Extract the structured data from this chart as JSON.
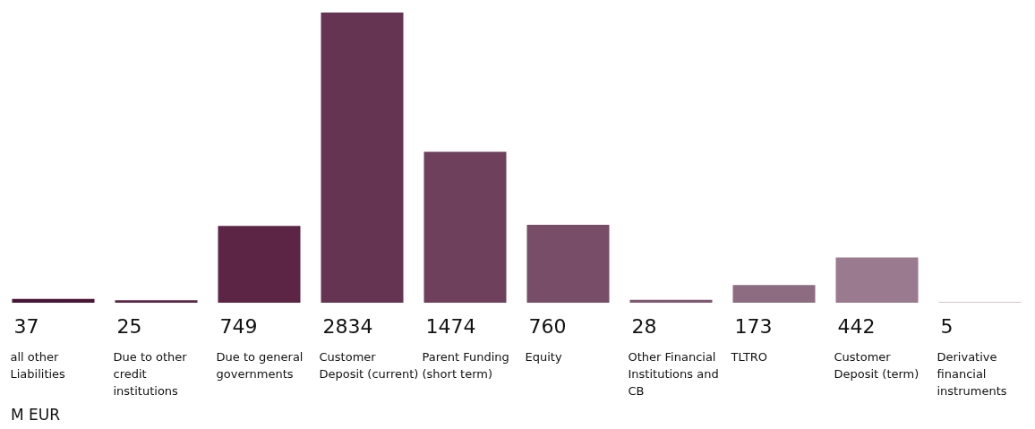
{
  "chart_data": {
    "type": "bar",
    "categories": [
      "all other Liabilities",
      "Due to other credit institutions",
      "Due to general governments",
      "Customer Deposit (current)",
      "Parent Funding (short term)",
      "Equity",
      "Other Financial Institutions and CB",
      "TLTRO",
      "Customer Deposit (term)",
      "Derivative financial instruments"
    ],
    "values": [
      37,
      25,
      749,
      2834,
      1474,
      760,
      28,
      173,
      442,
      5
    ],
    "colors": [
      "#4a1535",
      "#5c2445",
      "#5c2445",
      "#653453",
      "#6e405c",
      "#774d68",
      "#7f5a72",
      "#8d6c81",
      "#9a7a8e",
      "#a88c9d"
    ],
    "data_labels": true,
    "annotations": [
      "M EUR"
    ]
  }
}
